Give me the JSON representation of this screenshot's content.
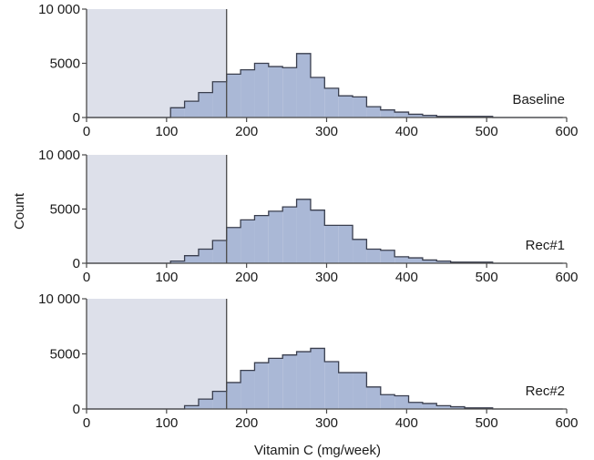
{
  "colors": {
    "shade": "#dde0ea",
    "fill": "#aab8d6",
    "stroke": "#3a3f4f",
    "axis": "#4a4a4a",
    "text": "#1a1a1a"
  },
  "chart_data": {
    "type": "bar",
    "subtype": "histogram",
    "xlabel": "Vitamin C (mg/week)",
    "ylabel": "Count",
    "xlim": [
      0,
      600
    ],
    "ylim": [
      0,
      10000
    ],
    "x_ticks": [
      "0",
      "100",
      "200",
      "300",
      "400",
      "500",
      "600"
    ],
    "y_ticks": [
      "0",
      "5000",
      "10 000"
    ],
    "bin_width": 17.5,
    "bin_start": 0,
    "threshold": 175,
    "shaded_region": [
      0,
      175
    ],
    "panels": [
      {
        "name": "Baseline",
        "counts": [
          0,
          0,
          0,
          0,
          0,
          0,
          900,
          1500,
          2300,
          3300,
          4000,
          4400,
          5000,
          4700,
          4600,
          5900,
          3700,
          2700,
          2000,
          1900,
          1000,
          700,
          500,
          300,
          200,
          100,
          100,
          100,
          100,
          0,
          0,
          0,
          0,
          0
        ]
      },
      {
        "name": "Rec#1",
        "counts": [
          0,
          0,
          0,
          0,
          0,
          0,
          200,
          700,
          1300,
          2100,
          3300,
          4000,
          4400,
          4800,
          5200,
          5900,
          4900,
          3500,
          3500,
          2200,
          1300,
          1200,
          600,
          500,
          300,
          200,
          100,
          100,
          100,
          0,
          0,
          0,
          0,
          0
        ]
      },
      {
        "name": "Rec#2",
        "counts": [
          0,
          0,
          0,
          0,
          0,
          0,
          0,
          300,
          900,
          1600,
          2400,
          3500,
          4200,
          4600,
          4900,
          5200,
          5500,
          4300,
          3300,
          3300,
          2000,
          1300,
          1200,
          600,
          500,
          300,
          200,
          100,
          100,
          0,
          0,
          0,
          0,
          0
        ]
      }
    ]
  }
}
